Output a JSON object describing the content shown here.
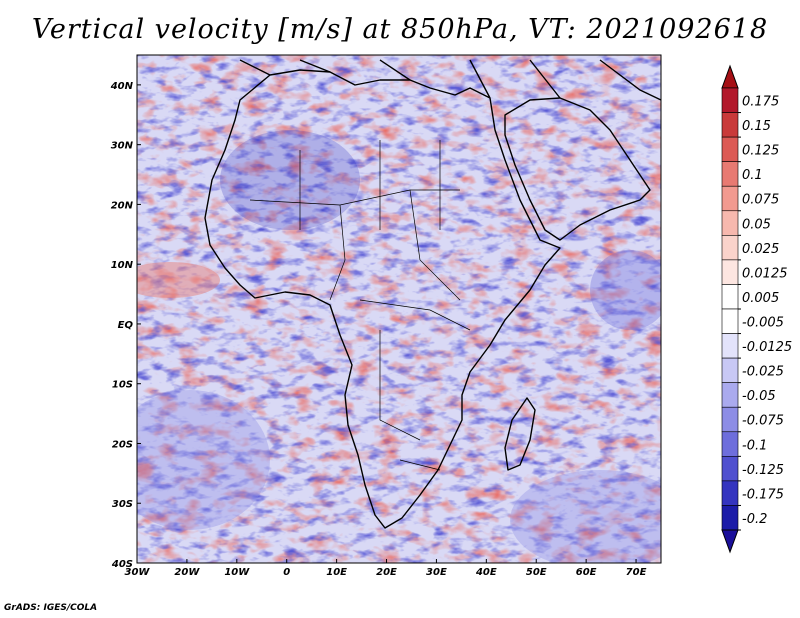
{
  "title": "Vertical velocity [m/s] at 850hPa, VT: 2021092618",
  "credit": "GrADS: IGES/COLA",
  "map": {
    "lon_range": [
      -30,
      75
    ],
    "lat_range": [
      -40,
      45
    ],
    "lon_ticks": [
      {
        "value": -30,
        "label": "30W"
      },
      {
        "value": -20,
        "label": "20W"
      },
      {
        "value": -10,
        "label": "10W"
      },
      {
        "value": 0,
        "label": "0"
      },
      {
        "value": 10,
        "label": "10E"
      },
      {
        "value": 20,
        "label": "20E"
      },
      {
        "value": 30,
        "label": "30E"
      },
      {
        "value": 40,
        "label": "40E"
      },
      {
        "value": 50,
        "label": "50E"
      },
      {
        "value": 60,
        "label": "60E"
      },
      {
        "value": 70,
        "label": "70E"
      }
    ],
    "lat_ticks": [
      {
        "value": 40,
        "label": "40N"
      },
      {
        "value": 30,
        "label": "30N"
      },
      {
        "value": 20,
        "label": "20N"
      },
      {
        "value": 10,
        "label": "10N"
      },
      {
        "value": 0,
        "label": "EQ"
      },
      {
        "value": -10,
        "label": "10S"
      },
      {
        "value": -20,
        "label": "20S"
      },
      {
        "value": -30,
        "label": "30S"
      },
      {
        "value": -40,
        "label": "40S"
      }
    ]
  },
  "colorbar": {
    "levels": [
      {
        "label": "0.175",
        "color": "#b2182b"
      },
      {
        "label": "0.15",
        "color": "#c93a3a"
      },
      {
        "label": "0.125",
        "color": "#dc5a55"
      },
      {
        "label": "0.1",
        "color": "#e87a72"
      },
      {
        "label": "0.075",
        "color": "#f29a90"
      },
      {
        "label": "0.05",
        "color": "#f7b8ae"
      },
      {
        "label": "0.025",
        "color": "#fad3cb"
      },
      {
        "label": "0.0125",
        "color": "#fde6e1"
      },
      {
        "label": "0.005",
        "color": "#ffffff"
      },
      {
        "label": "-0.005",
        "color": "#ffffff"
      },
      {
        "label": "-0.0125",
        "color": "#e3e3fb"
      },
      {
        "label": "-0.025",
        "color": "#c8c8f5"
      },
      {
        "label": "-0.05",
        "color": "#aaaaee"
      },
      {
        "label": "-0.075",
        "color": "#8d8de6"
      },
      {
        "label": "-0.1",
        "color": "#6e6edc"
      },
      {
        "label": "-0.125",
        "color": "#5050cf"
      },
      {
        "label": "-0.175",
        "color": "#3434bf"
      },
      {
        "label": "-0.2",
        "color": "#1c1ca8"
      }
    ],
    "top_arrow_color": "#a50f15",
    "bottom_arrow_color": "#1a0f9a"
  }
}
